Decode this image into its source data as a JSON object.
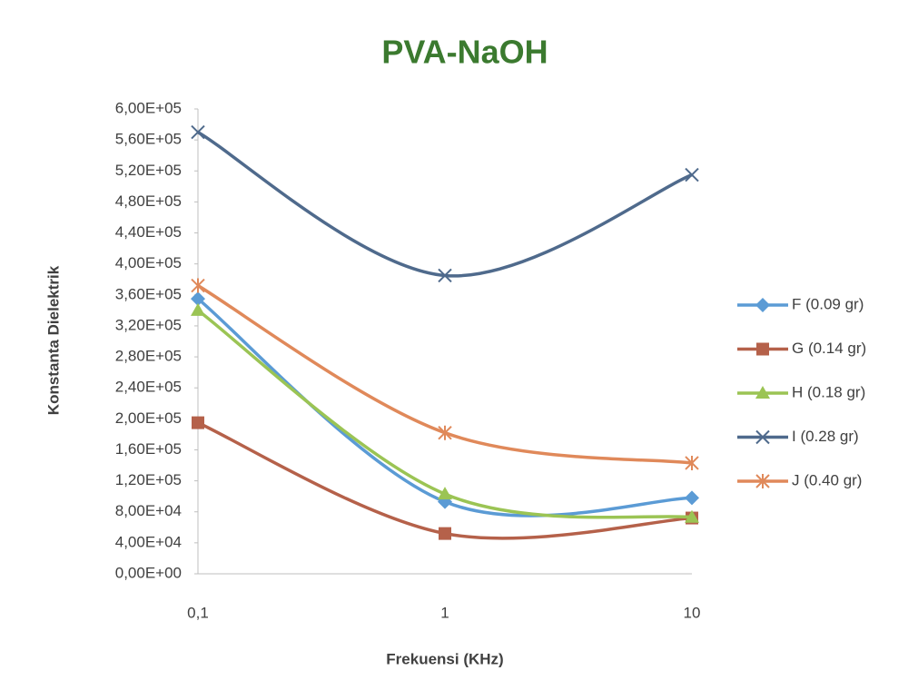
{
  "chart_data": {
    "type": "line",
    "title": "PVA-NaOH",
    "x_label": "Frekuensi (KHz)",
    "y_label": "Konstanta Dielektrik",
    "categories": [
      "0,1",
      "1",
      "10"
    ],
    "series": [
      {
        "name": "F (0.09 gr)",
        "color": "#5b9bd5",
        "marker": "diamond",
        "values": [
          355000,
          93000,
          98000
        ]
      },
      {
        "name": "G (0.14 gr)",
        "color": "#b5614a",
        "marker": "square",
        "values": [
          195000,
          52000,
          72000
        ]
      },
      {
        "name": "H (0.18 gr)",
        "color": "#9bc454",
        "marker": "triangle",
        "values": [
          340000,
          103000,
          73000
        ]
      },
      {
        "name": "I (0.28 gr)",
        "color": "#4f6a8c",
        "marker": "x",
        "values": [
          570000,
          385000,
          515000
        ]
      },
      {
        "name": "J (0.40 gr)",
        "color": "#e0895a",
        "marker": "star",
        "values": [
          372000,
          182000,
          143000
        ]
      }
    ],
    "ylim": [
      0,
      600000
    ],
    "yticks": [
      {
        "value": 0,
        "label": "0,00E+00"
      },
      {
        "value": 40000,
        "label": "4,00E+04"
      },
      {
        "value": 80000,
        "label": "8,00E+04"
      },
      {
        "value": 120000,
        "label": "1,20E+05"
      },
      {
        "value": 160000,
        "label": "1,60E+05"
      },
      {
        "value": 200000,
        "label": "2,00E+05"
      },
      {
        "value": 240000,
        "label": "2,40E+05"
      },
      {
        "value": 280000,
        "label": "2,80E+05"
      },
      {
        "value": 320000,
        "label": "3,20E+05"
      },
      {
        "value": 360000,
        "label": "3,60E+05"
      },
      {
        "value": 400000,
        "label": "4,00E+05"
      },
      {
        "value": 440000,
        "label": "4,40E+05"
      },
      {
        "value": 480000,
        "label": "4,80E+05"
      },
      {
        "value": 520000,
        "label": "5,20E+05"
      },
      {
        "value": 560000,
        "label": "5,60E+05"
      },
      {
        "value": 600000,
        "label": "6,00E+05"
      }
    ],
    "grid": false,
    "legend": "right"
  }
}
